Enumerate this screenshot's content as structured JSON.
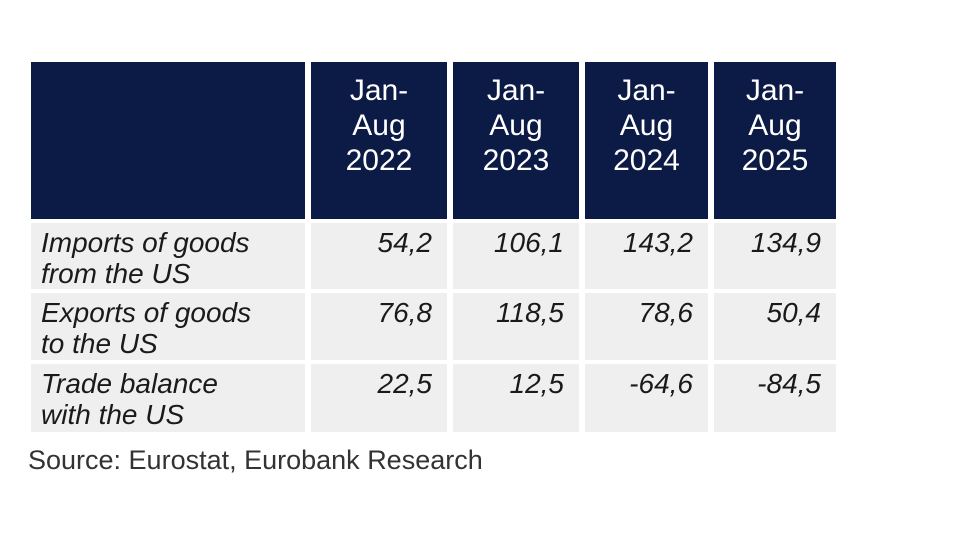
{
  "theme": {
    "header_bg": "#0c1b45",
    "cell_bg": "#f0efef",
    "header_text_color": "#ffffff",
    "body_text_color": "#1a1a1a"
  },
  "table": {
    "col_headers": [
      "Jan-\nAug\n2022",
      "Jan-\nAug\n2023",
      "Jan-\nAug\n2024",
      "Jan-\nAug\n2025"
    ],
    "rows": [
      {
        "label": "Imports of goods\nfrom the US",
        "values": [
          "54,2",
          "106,1",
          "143,2",
          "134,9"
        ]
      },
      {
        "label": "Exports of goods\nto the US",
        "values": [
          "76,8",
          "118,5",
          "78,6",
          "50,4"
        ]
      },
      {
        "label": "Trade balance\nwith the US",
        "values": [
          "22,5",
          "12,5",
          "-64,6",
          "-84,5"
        ]
      }
    ]
  },
  "source_note": "Source: Eurostat, Eurobank Research",
  "chart_data": {
    "type": "table",
    "categories": [
      "Jan-Aug 2022",
      "Jan-Aug 2023",
      "Jan-Aug 2024",
      "Jan-Aug 2025"
    ],
    "series": [
      {
        "name": "Imports of goods from the US",
        "values": [
          54.2,
          106.1,
          143.2,
          134.9
        ]
      },
      {
        "name": "Exports of goods to the US",
        "values": [
          76.8,
          118.5,
          78.6,
          50.4
        ]
      },
      {
        "name": "Trade balance with the US",
        "values": [
          22.5,
          12.5,
          -64.6,
          -84.5
        ]
      }
    ],
    "title": "",
    "xlabel": "",
    "ylabel": "",
    "source": "Source: Eurostat, Eurobank Research"
  }
}
